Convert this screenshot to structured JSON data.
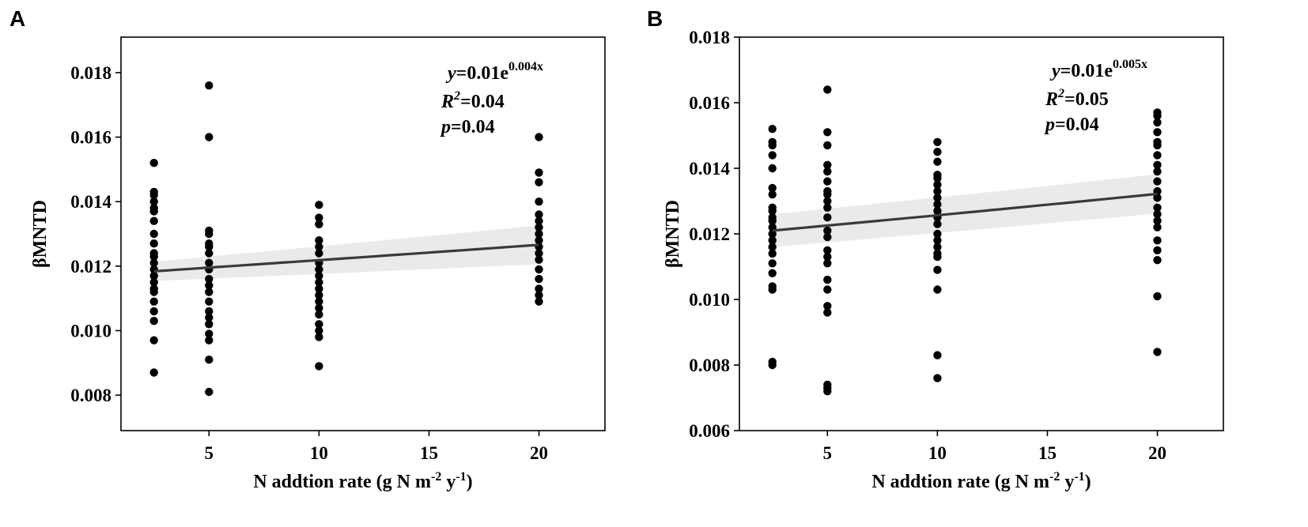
{
  "chart_data": [
    {
      "panel": "A",
      "type": "scatter",
      "xlabel_main": "N addtion rate (g N m",
      "xlabel_exp1": "-2",
      "xlabel_mid": " y",
      "xlabel_exp2": "-1",
      "xlabel_end": ")",
      "ylabel": "βMNTD",
      "xlim": [
        1.0,
        23.0
      ],
      "ylim": [
        0.0069,
        0.0191
      ],
      "xticks": [
        5,
        10,
        15,
        20
      ],
      "xtick_labels": [
        "5",
        "10",
        "15",
        "20"
      ],
      "yticks": [
        0.008,
        0.01,
        0.012,
        0.014,
        0.016,
        0.018
      ],
      "ytick_labels": [
        "0.008",
        "0.010",
        "0.012",
        "0.014",
        "0.016",
        "0.018"
      ],
      "points": [
        [
          2.5,
          0.0152
        ],
        [
          2.5,
          0.0143
        ],
        [
          2.5,
          0.0142
        ],
        [
          2.5,
          0.014
        ],
        [
          2.5,
          0.0138
        ],
        [
          2.5,
          0.0137
        ],
        [
          2.5,
          0.0134
        ],
        [
          2.5,
          0.013
        ],
        [
          2.5,
          0.0127
        ],
        [
          2.5,
          0.0124
        ],
        [
          2.5,
          0.0123
        ],
        [
          2.5,
          0.0121
        ],
        [
          2.5,
          0.0119
        ],
        [
          2.5,
          0.0117
        ],
        [
          2.5,
          0.0115
        ],
        [
          2.5,
          0.0113
        ],
        [
          2.5,
          0.0112
        ],
        [
          2.5,
          0.0109
        ],
        [
          2.5,
          0.0106
        ],
        [
          2.5,
          0.0103
        ],
        [
          2.5,
          0.0097
        ],
        [
          2.5,
          0.0087
        ],
        [
          5,
          0.0176
        ],
        [
          5,
          0.016
        ],
        [
          5,
          0.0131
        ],
        [
          5,
          0.013
        ],
        [
          5,
          0.0127
        ],
        [
          5,
          0.0126
        ],
        [
          5,
          0.0124
        ],
        [
          5,
          0.0121
        ],
        [
          5,
          0.0119
        ],
        [
          5,
          0.0116
        ],
        [
          5,
          0.0114
        ],
        [
          5,
          0.0112
        ],
        [
          5,
          0.0109
        ],
        [
          5,
          0.0106
        ],
        [
          5,
          0.0104
        ],
        [
          5,
          0.0102
        ],
        [
          5,
          0.0099
        ],
        [
          5,
          0.0097
        ],
        [
          5,
          0.0091
        ],
        [
          5,
          0.0081
        ],
        [
          10,
          0.0139
        ],
        [
          10,
          0.0135
        ],
        [
          10,
          0.0133
        ],
        [
          10,
          0.0128
        ],
        [
          10,
          0.0126
        ],
        [
          10,
          0.0124
        ],
        [
          10,
          0.0121
        ],
        [
          10,
          0.0119
        ],
        [
          10,
          0.0117
        ],
        [
          10,
          0.0115
        ],
        [
          10,
          0.0113
        ],
        [
          10,
          0.0111
        ],
        [
          10,
          0.0109
        ],
        [
          10,
          0.0107
        ],
        [
          10,
          0.0105
        ],
        [
          10,
          0.0102
        ],
        [
          10,
          0.01
        ],
        [
          10,
          0.0098
        ],
        [
          10,
          0.0089
        ],
        [
          20,
          0.016
        ],
        [
          20,
          0.0149
        ],
        [
          20,
          0.0146
        ],
        [
          20,
          0.014
        ],
        [
          20,
          0.0136
        ],
        [
          20,
          0.0134
        ],
        [
          20,
          0.0132
        ],
        [
          20,
          0.013
        ],
        [
          20,
          0.0128
        ],
        [
          20,
          0.0126
        ],
        [
          20,
          0.0124
        ],
        [
          20,
          0.0122
        ],
        [
          20,
          0.0119
        ],
        [
          20,
          0.0116
        ],
        [
          20,
          0.0113
        ],
        [
          20,
          0.0111
        ],
        [
          20,
          0.0109
        ]
      ],
      "fit": {
        "a": 0.01,
        "b": 0.004,
        "x_start": 2.5,
        "x_end": 20,
        "y_start": 0.01184,
        "y_end": 0.01266,
        "ci_start": 0.0003,
        "ci_end": 0.0006
      },
      "annotation": {
        "eq_prefix": "y",
        "eq_body": "=0.01e",
        "eq_exp": "0.004x",
        "r2_label": "R",
        "r2_exp": "2",
        "r2_value": "=0.04",
        "p_label": "p",
        "p_value": "=0.04"
      },
      "colors": {
        "points": "#000000",
        "fit_line": "#3a3a3a",
        "ci_band": "#d9d9d9"
      }
    },
    {
      "panel": "B",
      "type": "scatter",
      "xlabel_main": "N addtion rate (g N m",
      "xlabel_exp1": "-2",
      "xlabel_mid": " y",
      "xlabel_exp2": "-1",
      "xlabel_end": ")",
      "ylabel": "βMNTD",
      "xlim": [
        1.0,
        23.0
      ],
      "ylim": [
        0.006,
        0.018
      ],
      "xticks": [
        5,
        10,
        15,
        20
      ],
      "xtick_labels": [
        "5",
        "10",
        "15",
        "20"
      ],
      "yticks": [
        0.006,
        0.008,
        0.01,
        0.012,
        0.014,
        0.016,
        0.018
      ],
      "ytick_labels": [
        "0.006",
        "0.008",
        "0.010",
        "0.012",
        "0.014",
        "0.016",
        "0.018"
      ],
      "points": [
        [
          2.5,
          0.0152
        ],
        [
          2.5,
          0.0148
        ],
        [
          2.5,
          0.0147
        ],
        [
          2.5,
          0.0144
        ],
        [
          2.5,
          0.014
        ],
        [
          2.5,
          0.0134
        ],
        [
          2.5,
          0.0132
        ],
        [
          2.5,
          0.0128
        ],
        [
          2.5,
          0.0127
        ],
        [
          2.5,
          0.0125
        ],
        [
          2.5,
          0.0124
        ],
        [
          2.5,
          0.0122
        ],
        [
          2.5,
          0.012
        ],
        [
          2.5,
          0.0118
        ],
        [
          2.5,
          0.0116
        ],
        [
          2.5,
          0.0114
        ],
        [
          2.5,
          0.0111
        ],
        [
          2.5,
          0.0108
        ],
        [
          2.5,
          0.0104
        ],
        [
          2.5,
          0.0103
        ],
        [
          2.5,
          0.0081
        ],
        [
          2.5,
          0.008
        ],
        [
          5,
          0.0164
        ],
        [
          5,
          0.0151
        ],
        [
          5,
          0.0147
        ],
        [
          5,
          0.0141
        ],
        [
          5,
          0.0139
        ],
        [
          5,
          0.0136
        ],
        [
          5,
          0.0133
        ],
        [
          5,
          0.0132
        ],
        [
          5,
          0.013
        ],
        [
          5,
          0.0128
        ],
        [
          5,
          0.0125
        ],
        [
          5,
          0.0121
        ],
        [
          5,
          0.0119
        ],
        [
          5,
          0.0115
        ],
        [
          5,
          0.0113
        ],
        [
          5,
          0.0111
        ],
        [
          5,
          0.0106
        ],
        [
          5,
          0.0103
        ],
        [
          5,
          0.0098
        ],
        [
          5,
          0.0096
        ],
        [
          5,
          0.0074
        ],
        [
          5,
          0.0073
        ],
        [
          5,
          0.0072
        ],
        [
          10,
          0.0148
        ],
        [
          10,
          0.0145
        ],
        [
          10,
          0.0142
        ],
        [
          10,
          0.0138
        ],
        [
          10,
          0.0137
        ],
        [
          10,
          0.0135
        ],
        [
          10,
          0.0133
        ],
        [
          10,
          0.0131
        ],
        [
          10,
          0.0129
        ],
        [
          10,
          0.0127
        ],
        [
          10,
          0.0125
        ],
        [
          10,
          0.0123
        ],
        [
          10,
          0.012
        ],
        [
          10,
          0.0118
        ],
        [
          10,
          0.0116
        ],
        [
          10,
          0.0114
        ],
        [
          10,
          0.0113
        ],
        [
          10,
          0.0109
        ],
        [
          10,
          0.0103
        ],
        [
          10,
          0.0083
        ],
        [
          10,
          0.0076
        ],
        [
          20,
          0.0157
        ],
        [
          20,
          0.0156
        ],
        [
          20,
          0.0154
        ],
        [
          20,
          0.0151
        ],
        [
          20,
          0.0148
        ],
        [
          20,
          0.0147
        ],
        [
          20,
          0.0144
        ],
        [
          20,
          0.0141
        ],
        [
          20,
          0.0139
        ],
        [
          20,
          0.0136
        ],
        [
          20,
          0.0133
        ],
        [
          20,
          0.0131
        ],
        [
          20,
          0.0128
        ],
        [
          20,
          0.0126
        ],
        [
          20,
          0.0124
        ],
        [
          20,
          0.0122
        ],
        [
          20,
          0.0118
        ],
        [
          20,
          0.0115
        ],
        [
          20,
          0.0112
        ],
        [
          20,
          0.0101
        ],
        [
          20,
          0.0084
        ]
      ],
      "fit": {
        "a": 0.01,
        "b": 0.005,
        "x_start": 2.5,
        "x_end": 20,
        "y_start": 0.0121,
        "y_end": 0.01322,
        "ci_start": 0.0005,
        "ci_end": 0.0006
      },
      "annotation": {
        "eq_prefix": "y",
        "eq_body": "=0.01e",
        "eq_exp": "0.005x",
        "r2_label": "R",
        "r2_exp": "2",
        "r2_value": "=0.05",
        "p_label": "p",
        "p_value": "=0.04"
      },
      "colors": {
        "points": "#000000",
        "fit_line": "#3a3a3a",
        "ci_band": "#d9d9d9"
      }
    }
  ]
}
